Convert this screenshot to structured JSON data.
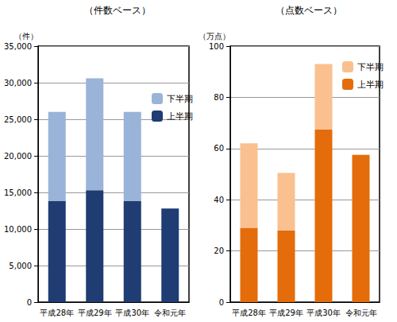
{
  "chart_data": [
    {
      "type": "bar",
      "title": "（件数ベース）",
      "ylabel": "（件）",
      "categories": [
        "平成28年",
        "平成29年",
        "平成30年",
        "令和元年"
      ],
      "series": [
        {
          "name": "上半期",
          "color": "#1f3c73",
          "values": [
            13800,
            15300,
            13800,
            12800
          ]
        },
        {
          "name": "下半期",
          "color": "#9ab3d8",
          "values": [
            12200,
            15300,
            12200,
            null
          ]
        }
      ],
      "ylim": [
        0,
        35000
      ],
      "yticks": [
        0,
        {
          "value": 5000,
          "label": "5,000"
        },
        {
          "value": 10000,
          "label": "10,000"
        },
        {
          "value": 15000,
          "label": "15,000"
        },
        {
          "value": 20000,
          "label": "20,000"
        },
        {
          "value": 25000,
          "label": "25,000"
        },
        {
          "value": 30000,
          "label": "30,000"
        },
        {
          "value": 35000,
          "label": "35,000"
        }
      ],
      "stacked": true,
      "grid": true,
      "legend": "upper right"
    },
    {
      "type": "bar",
      "title": "（点数ベース）",
      "ylabel": "（万点）",
      "categories": [
        "平成28年",
        "平成29年",
        "平成30年",
        "令和元年"
      ],
      "series": [
        {
          "name": "上半期",
          "color": "#e46c0a",
          "values": [
            29,
            28,
            67.5,
            57.5
          ]
        },
        {
          "name": "下半期",
          "color": "#fac090",
          "values": [
            33,
            22.5,
            25.5,
            null
          ]
        }
      ],
      "ylim": [
        0,
        100
      ],
      "yticks": [
        0,
        20,
        40,
        60,
        80,
        100
      ],
      "stacked": true,
      "grid": true,
      "legend": "upper right"
    }
  ]
}
